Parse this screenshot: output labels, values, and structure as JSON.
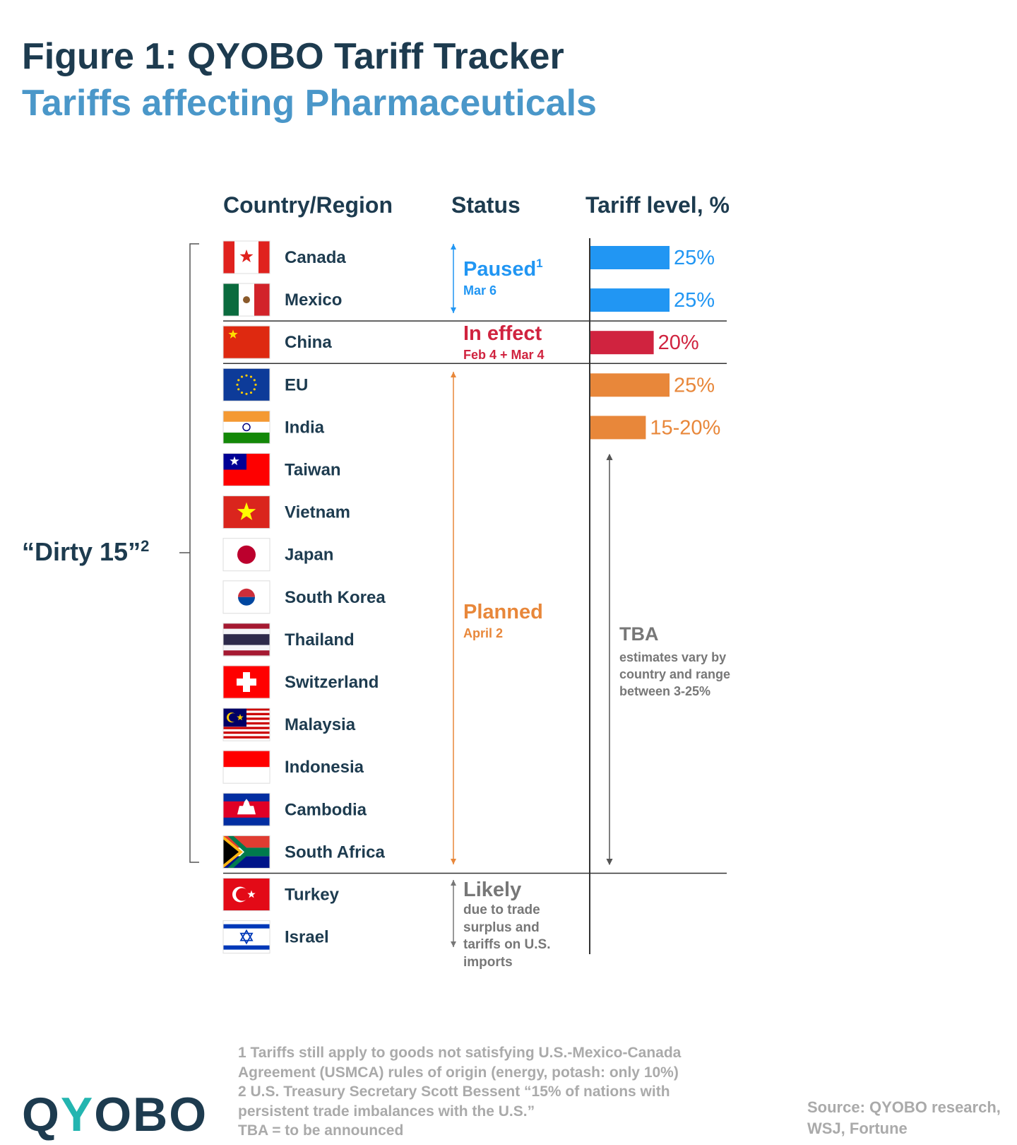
{
  "header": {
    "title": "Figure 1: QYOBO Tariff Tracker",
    "subtitle": "Tariffs affecting Pharmaceuticals"
  },
  "columns": [
    "Country/Region",
    "Status",
    "Tariff level, %"
  ],
  "groups": [
    {
      "status": "Paused",
      "note_ref": "1",
      "date": "Mar 6",
      "color": "#2196f3",
      "countries": [
        {
          "name": "Canada",
          "tariff": 25,
          "tariff_label": "25%"
        },
        {
          "name": "Mexico",
          "tariff": 25,
          "tariff_label": "25%"
        }
      ]
    },
    {
      "status": "In effect",
      "date": "Feb 4 + Mar 4",
      "color": "#d0233f",
      "countries": [
        {
          "name": "China",
          "tariff": 20,
          "tariff_label": "20%"
        }
      ]
    },
    {
      "status": "Planned",
      "date": "April 2",
      "color": "#e8873a",
      "countries": [
        {
          "name": "EU",
          "tariff": 25,
          "tariff_label": "25%"
        },
        {
          "name": "India",
          "tariff": [
            15,
            20
          ],
          "tariff_label": "15-20%"
        },
        {
          "name": "Taiwan"
        },
        {
          "name": "Vietnam"
        },
        {
          "name": "Japan"
        },
        {
          "name": "South Korea"
        },
        {
          "name": "Thailand"
        },
        {
          "name": "Switzerland"
        },
        {
          "name": "Malaysia"
        },
        {
          "name": "Indonesia"
        },
        {
          "name": "Cambodia"
        },
        {
          "name": "South Africa"
        }
      ]
    },
    {
      "status": "Likely",
      "date": "due to trade surplus and tariffs on U.S. imports",
      "color": "#777777",
      "countries": [
        {
          "name": "Turkey"
        },
        {
          "name": "Israel"
        }
      ]
    }
  ],
  "tba": {
    "title": "TBA",
    "text": "estimates vary by country and range between 3-25%"
  },
  "bracket": {
    "label": "“Dirty 15”",
    "note_ref": "2"
  },
  "footnotes": [
    "1 Tariffs still apply to goods not satisfying U.S.-Mexico-Canada Agreement (USMCA) rules of origin (energy, potash: only 10%)",
    "2 U.S. Treasury Secretary Scott Bessent “15% of nations with persistent trade imbalances with the U.S.”",
    "TBA = to be announced"
  ],
  "source": "Source: QYOBO research, WSJ, Fortune",
  "logo": "QYOBO"
}
